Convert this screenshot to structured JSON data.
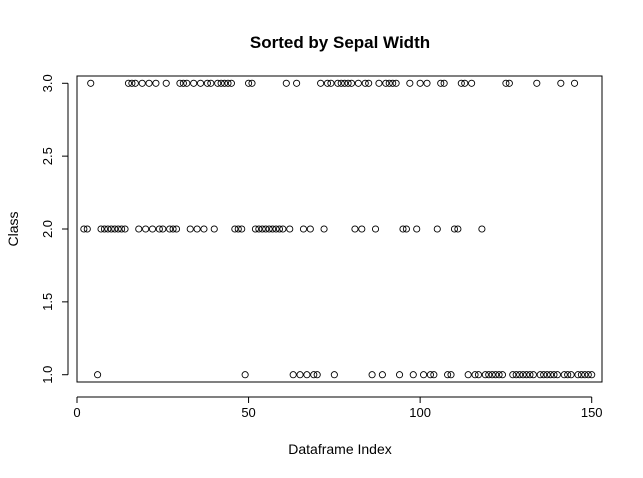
{
  "chart_data": {
    "type": "scatter",
    "title": "Sorted by Sepal Width",
    "xlabel": "Dataframe Index",
    "ylabel": "Class",
    "xlim": [
      0,
      153
    ],
    "ylim": [
      0.95,
      3.05
    ],
    "x_ticks": [
      0,
      50,
      100,
      150
    ],
    "y_ticks": [
      1.0,
      1.5,
      2.0,
      2.5,
      3.0
    ],
    "x_tick_labels": [
      "0",
      "50",
      "100",
      "150"
    ],
    "y_tick_labels": [
      "1.0",
      "1.5",
      "2.0",
      "2.5",
      "3.0"
    ],
    "grid": false,
    "series": [
      {
        "x": [
          2,
          3,
          4,
          6,
          7,
          8,
          9,
          10,
          11,
          12,
          13,
          14,
          15,
          16,
          17,
          18,
          19,
          20,
          21,
          22,
          23,
          24,
          25,
          26,
          27,
          28,
          29,
          30,
          31,
          32,
          33,
          34,
          35,
          36,
          37,
          38,
          39,
          40,
          41,
          42,
          43,
          44,
          45,
          46,
          47,
          48,
          49,
          50,
          51,
          52,
          53,
          54,
          55,
          56,
          57,
          58,
          59,
          60,
          61,
          62,
          63,
          64,
          65,
          66,
          67,
          68,
          69,
          70,
          71,
          72,
          73,
          74,
          75,
          76,
          77,
          78,
          79,
          80,
          81,
          82,
          83,
          84,
          85,
          86,
          87,
          88,
          89,
          90,
          91,
          92,
          93,
          94,
          95,
          96,
          97,
          98,
          99,
          100,
          101,
          102,
          103,
          104,
          105,
          106,
          107,
          108,
          109,
          110,
          111,
          112,
          113,
          114,
          115,
          116,
          117,
          118,
          119,
          120,
          121,
          122,
          123,
          124,
          125,
          126,
          127,
          128,
          129,
          130,
          131,
          132,
          133,
          134,
          135,
          136,
          137,
          138,
          139,
          140,
          141,
          142,
          143,
          144,
          145,
          146,
          147,
          148,
          149,
          150
        ],
        "y": [
          2,
          2,
          3,
          1,
          2,
          2,
          2,
          2,
          2,
          2,
          2,
          2,
          3,
          3,
          3,
          2,
          3,
          2,
          3,
          2,
          3,
          2,
          2,
          3,
          2,
          2,
          2,
          3,
          3,
          3,
          2,
          3,
          2,
          3,
          2,
          3,
          3,
          2,
          3,
          3,
          3,
          3,
          3,
          2,
          2,
          2,
          1,
          3,
          3,
          2,
          2,
          2,
          2,
          2,
          2,
          2,
          2,
          2,
          3,
          2,
          1,
          3,
          1,
          2,
          1,
          2,
          1,
          1,
          3,
          2,
          3,
          3,
          1,
          3,
          3,
          3,
          3,
          3,
          2,
          3,
          2,
          3,
          3,
          1,
          2,
          3,
          1,
          3,
          3,
          3,
          3,
          1,
          2,
          2,
          3,
          1,
          2,
          3,
          1,
          3,
          1,
          1,
          2,
          3,
          3,
          1,
          1,
          2,
          2,
          3,
          3,
          1,
          3,
          1,
          1,
          2,
          1,
          1,
          1,
          1,
          1,
          1,
          3,
          3,
          1,
          1,
          1,
          1,
          1,
          1,
          1,
          3,
          1,
          1,
          1,
          1,
          1,
          1,
          3,
          1,
          1,
          1,
          3,
          1,
          1,
          1,
          1,
          1
        ]
      }
    ]
  }
}
